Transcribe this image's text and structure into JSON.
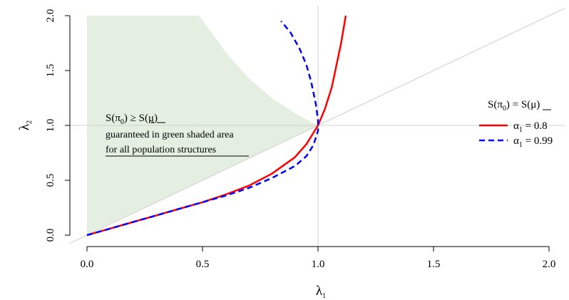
{
  "chart_data": {
    "type": "line",
    "xlabel": "λ",
    "xlabel_sub": "1",
    "ylabel": "λ",
    "ylabel_sub": "2",
    "xlim": [
      0,
      2
    ],
    "ylim": [
      0,
      2
    ],
    "x_ticks": [
      "0.0",
      "0.5",
      "1.0",
      "1.5",
      "2.0"
    ],
    "y_ticks": [
      "0.0",
      "0.5",
      "1.0",
      "1.5",
      "2.0"
    ],
    "reference_lines": {
      "vertical_x": 1.0,
      "horizontal_y": 1.0,
      "diagonal": "y = x"
    },
    "shaded_region": {
      "color": "#e4efe2",
      "description_lines": [
        "S(π₀) ≥ S(μ)",
        "guaranteed in green shaded area",
        "for all population structures"
      ],
      "boundary_upper": [
        [
          0,
          2.0
        ],
        [
          0.485,
          2.0
        ],
        [
          0.6,
          1.67
        ],
        [
          0.7,
          1.43
        ],
        [
          0.8,
          1.25
        ],
        [
          0.9,
          1.11
        ],
        [
          1.0,
          1.0
        ]
      ],
      "boundary_lower": [
        [
          1.0,
          1.0
        ],
        [
          0.0,
          0.0
        ]
      ]
    },
    "annotation": {
      "line1": {
        "S1": "S(π",
        "sub": "0",
        "rest": ") ≥ S(",
        "mu": "μ",
        "end": ")"
      },
      "line2": "guaranteed in green shaded area",
      "line3": "for all population structures"
    },
    "legend": {
      "position": "right",
      "title": {
        "pre": "S(π",
        "sub": "0",
        "mid": ") = S(",
        "mu": "μ",
        "end": ")"
      },
      "entries": [
        {
          "label_pre": "α",
          "label_sub": "1",
          "label_post": " = 0.8",
          "color": "#ff0000",
          "dash": "solid"
        },
        {
          "label_pre": "α",
          "label_sub": "1",
          "label_post": " = 0.99",
          "color": "#0000ff",
          "dash": "dashed"
        }
      ]
    },
    "series": [
      {
        "color": "#ff0000",
        "style": "solid",
        "x": [
          0.0,
          0.1,
          0.2,
          0.3,
          0.4,
          0.5,
          0.6,
          0.7,
          0.8,
          0.9,
          0.95,
          1.0,
          1.03,
          1.06,
          1.08,
          1.1,
          1.12
        ],
        "y": [
          0.0,
          0.06,
          0.12,
          0.18,
          0.24,
          0.3,
          0.37,
          0.45,
          0.56,
          0.71,
          0.83,
          1.0,
          1.15,
          1.35,
          1.55,
          1.75,
          2.0
        ]
      },
      {
        "color": "#0000ff",
        "style": "dashed",
        "x": [
          0.0,
          0.1,
          0.2,
          0.3,
          0.4,
          0.5,
          0.6,
          0.7,
          0.8,
          0.9,
          0.95,
          0.98,
          1.0,
          1.0,
          0.99,
          0.97,
          0.95,
          0.92,
          0.88,
          0.84
        ],
        "y": [
          0.0,
          0.06,
          0.12,
          0.18,
          0.24,
          0.3,
          0.36,
          0.43,
          0.52,
          0.63,
          0.72,
          0.82,
          0.95,
          1.05,
          1.2,
          1.4,
          1.55,
          1.7,
          1.85,
          1.95
        ]
      }
    ]
  }
}
